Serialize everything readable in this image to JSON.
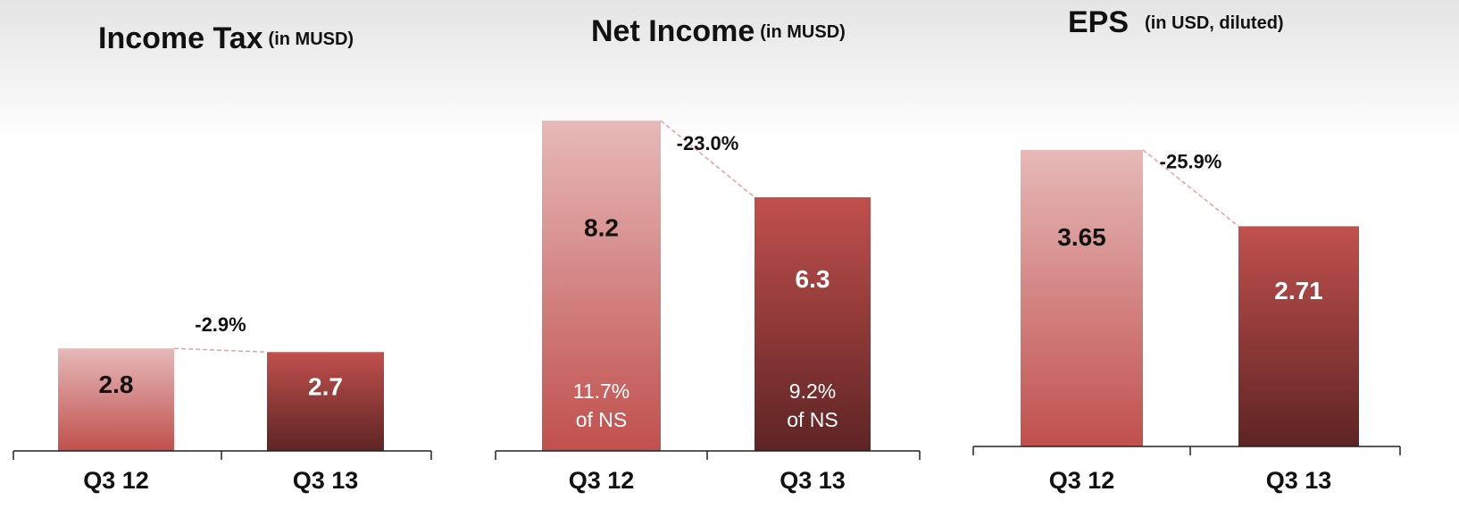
{
  "chart_data": [
    {
      "type": "bar",
      "title": "Income Tax",
      "subtitle": "(in MUSD)",
      "categories": [
        "Q3 12",
        "Q3 13"
      ],
      "values": [
        2.8,
        2.7
      ],
      "colors": [
        "#e6b9b8",
        "#c0504d"
      ],
      "annotation": "-2.9%"
    },
    {
      "type": "bar",
      "title": "Net Income",
      "subtitle": "(in MUSD)",
      "categories": [
        "Q3 12",
        "Q3 13"
      ],
      "values": [
        8.2,
        6.3
      ],
      "colors": [
        "#e6b9b8",
        "#c0504d"
      ],
      "annotation": "-23.0%",
      "share_labels": [
        [
          "11.7%",
          "of NS"
        ],
        [
          "9.2%",
          "of NS"
        ]
      ]
    },
    {
      "type": "bar",
      "title": "EPS",
      "subtitle": "(in USD, diluted)",
      "categories": [
        "Q3 12",
        "Q3 13"
      ],
      "values": [
        3.65,
        2.71
      ],
      "colors": [
        "#e6b9b8",
        "#c0504d"
      ],
      "annotation": "-25.9%"
    }
  ]
}
